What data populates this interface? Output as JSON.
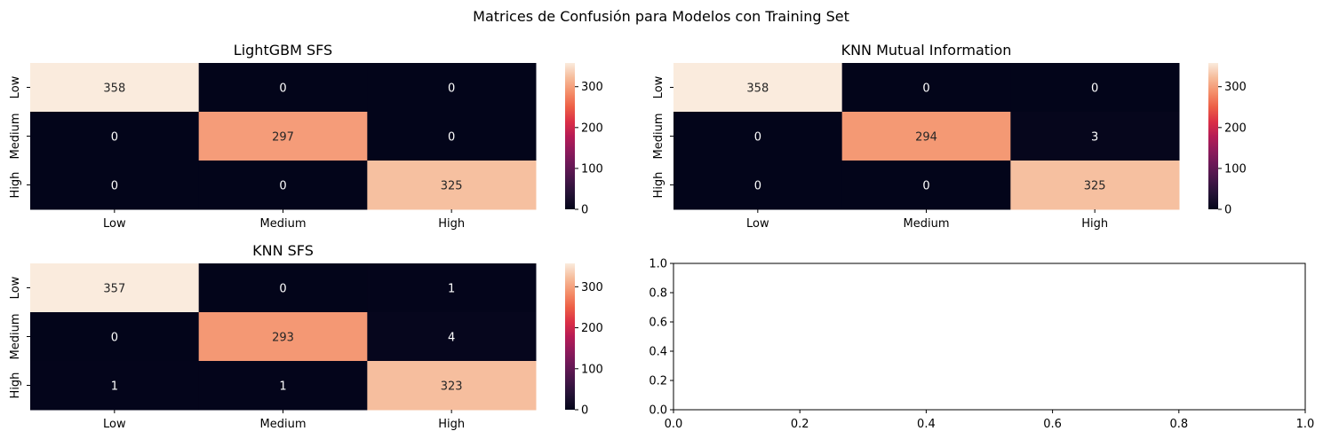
{
  "figure": {
    "suptitle": "Matrices de Confusión para Modelos con Training Set"
  },
  "chart_data": [
    {
      "type": "heatmap",
      "title": "LightGBM SFS",
      "x_categories": [
        "Low",
        "Medium",
        "High"
      ],
      "y_categories": [
        "Low",
        "Medium",
        "High"
      ],
      "values": [
        [
          358,
          0,
          0
        ],
        [
          0,
          297,
          0
        ],
        [
          0,
          0,
          325
        ]
      ],
      "colorbar": {
        "range": [
          0,
          358
        ],
        "ticks": [
          0,
          100,
          200,
          300
        ]
      }
    },
    {
      "type": "heatmap",
      "title": "KNN Mutual Information",
      "x_categories": [
        "Low",
        "Medium",
        "High"
      ],
      "y_categories": [
        "Low",
        "Medium",
        "High"
      ],
      "values": [
        [
          358,
          0,
          0
        ],
        [
          0,
          294,
          3
        ],
        [
          0,
          0,
          325
        ]
      ],
      "colorbar": {
        "range": [
          0,
          358
        ],
        "ticks": [
          0,
          100,
          200,
          300
        ]
      }
    },
    {
      "type": "heatmap",
      "title": "KNN SFS",
      "x_categories": [
        "Low",
        "Medium",
        "High"
      ],
      "y_categories": [
        "Low",
        "Medium",
        "High"
      ],
      "values": [
        [
          357,
          0,
          1
        ],
        [
          0,
          293,
          4
        ],
        [
          1,
          1,
          323
        ]
      ],
      "colorbar": {
        "range": [
          0,
          357
        ],
        "ticks": [
          0,
          100,
          200,
          300
        ]
      }
    },
    {
      "type": "scatter",
      "title": "",
      "x": [],
      "y": [],
      "xlim": [
        0,
        1
      ],
      "ylim": [
        0,
        1
      ],
      "xticks": [
        "0.0",
        "0.2",
        "0.4",
        "0.6",
        "0.8",
        "1.0"
      ],
      "yticks": [
        "0.0",
        "0.2",
        "0.4",
        "0.6",
        "0.8",
        "1.0"
      ]
    }
  ]
}
